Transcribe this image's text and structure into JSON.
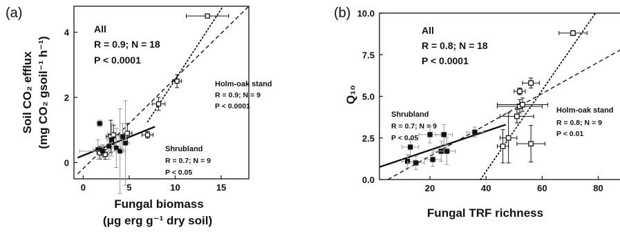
{
  "chart_data": [
    {
      "type": "scatter",
      "panel": "(a)",
      "xlabel_line1": "Fungal biomass",
      "xlabel_line2": "(μg erg g⁻¹ dry soil)",
      "ylabel_line1": "Soil CO₂ efflux",
      "ylabel_line2": "(mg CO₂ gsoil⁻¹ h⁻¹)",
      "xlim": [
        -1,
        18
      ],
      "ylim": [
        -0.5,
        4.8
      ],
      "x_ticks": [
        0,
        5,
        10,
        15
      ],
      "y_ticks": [
        0,
        2,
        4
      ],
      "grid": false,
      "series": [
        {
          "name": "Holm-oak stand",
          "marker": "open",
          "points": [
            {
              "x": 1.8,
              "y": 0.3,
              "xerr": 0.3,
              "yerr": 0.2
            },
            {
              "x": 2.4,
              "y": 0.25,
              "xerr": 0.4,
              "yerr": 0.15
            },
            {
              "x": 3.0,
              "y": 0.8,
              "xerr": 0.5,
              "yerr": 0.5
            },
            {
              "x": 3.3,
              "y": 0.85,
              "xerr": 0.6,
              "yerr": 0.3
            },
            {
              "x": 4.8,
              "y": 0.9,
              "xerr": 0.5,
              "yerr": 0.3
            },
            {
              "x": 7.0,
              "y": 0.85,
              "xerr": 0.6,
              "yerr": 0.1
            },
            {
              "x": 8.2,
              "y": 1.8,
              "xerr": 0.7,
              "yerr": 0.2
            },
            {
              "x": 10.2,
              "y": 2.5,
              "xerr": 0.5,
              "yerr": 0.2
            },
            {
              "x": 13.5,
              "y": 4.5,
              "xerr": 2.3,
              "yerr": 0.05
            }
          ]
        },
        {
          "name": "Shrubland",
          "marker": "filled",
          "points": [
            {
              "x": 1.6,
              "y": 0.4,
              "xerr": 0.5,
              "yerr": 0.3
            },
            {
              "x": 1.8,
              "y": 1.2,
              "xerr": 0.3,
              "yerr": 0.1
            },
            {
              "x": 2.1,
              "y": 0.35,
              "xerr": 2.5,
              "yerr": 0.2
            },
            {
              "x": 2.8,
              "y": 0.5,
              "xerr": 0.6,
              "yerr": 0.4
            },
            {
              "x": 3.1,
              "y": 0.7,
              "xerr": 0.5,
              "yerr": 0.5
            },
            {
              "x": 3.6,
              "y": 0.45,
              "xerr": 0.5,
              "yerr": 0.6
            },
            {
              "x": 4.0,
              "y": 0.35,
              "xerr": 0.4,
              "yerr": 1.3
            },
            {
              "x": 4.3,
              "y": 0.8,
              "xerr": 0.4,
              "yerr": 0.4
            },
            {
              "x": 4.6,
              "y": 0.6,
              "xerr": 0.4,
              "yerr": 1.3
            }
          ]
        }
      ],
      "fits": [
        {
          "style": "dashed",
          "x": [
            -0.6,
            18
          ],
          "y": [
            -0.35,
            4.8
          ]
        },
        {
          "style": "dotted",
          "x": [
            7.0,
            15.2
          ],
          "y": [
            1.25,
            4.8
          ]
        },
        {
          "style": "solid",
          "x": [
            -0.6,
            7.8
          ],
          "y": [
            0.15,
            1.1
          ]
        }
      ],
      "annotations": {
        "all_title": "All",
        "all_r": "R = 0.9; N = 18",
        "all_p": "P < 0.0001",
        "group1_name": "Holm-oak stand",
        "group1_r": "R = 0.9; N = 9",
        "group1_p": "P < 0.0001",
        "group2_name": "Shrubland",
        "group2_r": "R = 0.7; N = 9",
        "group2_p": "P < 0.05"
      }
    },
    {
      "type": "scatter",
      "panel": "(b)",
      "xlabel_line1": "Fungal TRF  richness",
      "xlabel_line2": "",
      "ylabel_line1": "Q₁₀",
      "ylabel_line2": "",
      "xlim": [
        2,
        88
      ],
      "ylim": [
        0,
        10
      ],
      "x_ticks": [
        20,
        40,
        60,
        80
      ],
      "y_ticks": [
        "0.0",
        "2.5",
        "5.0",
        "7.5",
        "10.0"
      ],
      "grid": false,
      "series": [
        {
          "name": "Shrubland",
          "marker": "filled",
          "points": [
            {
              "x": 12,
              "y": 1.1,
              "xerr": 2,
              "yerr": 0.4
            },
            {
              "x": 13,
              "y": 1.95,
              "xerr": 3,
              "yerr": 0.5
            },
            {
              "x": 15,
              "y": 1.0,
              "xerr": 3,
              "yerr": 0.4
            },
            {
              "x": 20,
              "y": 2.7,
              "xerr": 4,
              "yerr": 0.5
            },
            {
              "x": 21,
              "y": 1.2,
              "xerr": 3,
              "yerr": 0.4
            },
            {
              "x": 24,
              "y": 1.7,
              "xerr": 3,
              "yerr": 0.6
            },
            {
              "x": 25,
              "y": 2.7,
              "xerr": 3,
              "yerr": 0.6
            },
            {
              "x": 26,
              "y": 1.7,
              "xerr": 3,
              "yerr": 0.8
            },
            {
              "x": 36,
              "y": 2.85,
              "xerr": 3,
              "yerr": 0.3
            }
          ]
        },
        {
          "name": "Holm-oak stand",
          "marker": "open",
          "points": [
            {
              "x": 46,
              "y": 2.0,
              "xerr": 2,
              "yerr": 1.0
            },
            {
              "x": 48,
              "y": 2.5,
              "xerr": 3,
              "yerr": 1.5
            },
            {
              "x": 51,
              "y": 3.8,
              "xerr": 6,
              "yerr": 0.4
            },
            {
              "x": 52,
              "y": 4.4,
              "xerr": 8,
              "yerr": 0.4
            },
            {
              "x": 52,
              "y": 5.3,
              "xerr": 2,
              "yerr": 0.2
            },
            {
              "x": 53,
              "y": 4.5,
              "xerr": 9,
              "yerr": 0.4
            },
            {
              "x": 56,
              "y": 2.15,
              "xerr": 5,
              "yerr": 1.1
            },
            {
              "x": 56,
              "y": 5.8,
              "xerr": 3,
              "yerr": 0.3
            },
            {
              "x": 71,
              "y": 8.8,
              "xerr": 5,
              "yerr": 0.15
            }
          ]
        }
      ],
      "fits": [
        {
          "style": "dashed",
          "x": [
            5,
            88
          ],
          "y": [
            0,
            7.8
          ]
        },
        {
          "style": "dotted",
          "x": [
            38,
            79
          ],
          "y": [
            0,
            10
          ]
        },
        {
          "style": "solid",
          "x": [
            2,
            47
          ],
          "y": [
            0.75,
            3.3
          ]
        }
      ],
      "annotations": {
        "all_title": "All",
        "all_r": "R = 0.8; N = 18",
        "all_p": "P < 0.0001",
        "group1_name": "Holm-oak stand",
        "group1_r": "R = 0.8; N = 9",
        "group1_p": "P < 0.01",
        "group2_name": "Shrubland",
        "group2_r": "R = 0.7; N = 9",
        "group2_p": "P < 0.05"
      }
    }
  ]
}
